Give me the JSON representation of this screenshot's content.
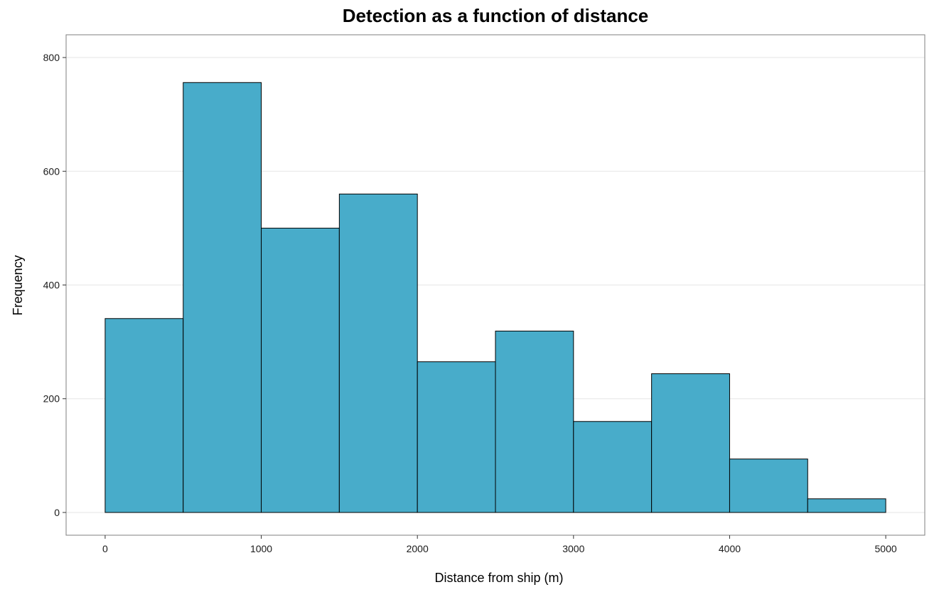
{
  "chart_data": {
    "type": "bar",
    "subtype": "histogram",
    "title": "Detection as a function of distance",
    "xlabel": "Distance from ship (m)",
    "ylabel": "Frequency",
    "bin_edges": [
      0,
      500,
      1000,
      1500,
      2000,
      2500,
      3000,
      3500,
      4000,
      4500,
      5000
    ],
    "values": [
      341,
      756,
      500,
      560,
      265,
      319,
      160,
      244,
      94,
      24
    ],
    "xlim": [
      -250,
      5250
    ],
    "ylim": [
      -40,
      840
    ],
    "x_ticks": [
      0,
      1000,
      2000,
      3000,
      4000,
      5000
    ],
    "y_ticks": [
      0,
      200,
      400,
      600,
      800
    ],
    "grid": true,
    "colors": {
      "bar_fill": "#48ACCA",
      "bar_outline": "#000000"
    }
  }
}
